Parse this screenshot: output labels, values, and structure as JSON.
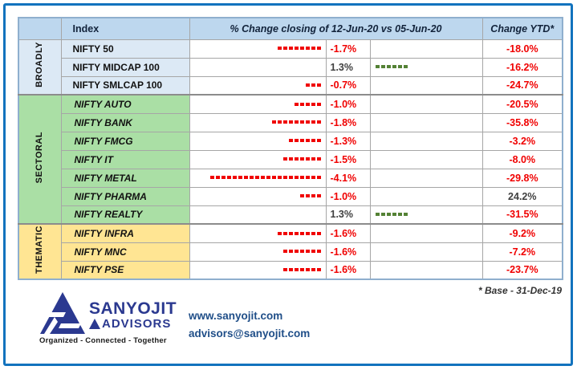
{
  "table": {
    "headers": {
      "index": "Index",
      "change": "% Change closing of 12-Jun-20 vs 05-Jun-20",
      "ytd": "Change YTD*"
    },
    "groups": [
      {
        "label": "BROADLY",
        "color": "#DCE9F5",
        "rows": [
          {
            "index": "NIFTY 50",
            "change": "-1.7%",
            "ytd": "-18.0%",
            "bars": 8,
            "positive": false
          },
          {
            "index": "NIFTY MIDCAP 100",
            "change": "1.3%",
            "ytd": "-16.2%",
            "bars": 6,
            "positive": true
          },
          {
            "index": "NIFTY SMLCAP 100",
            "change": "-0.7%",
            "ytd": "-24.7%",
            "bars": 3,
            "positive": false
          }
        ]
      },
      {
        "label": "SECTORAL",
        "color": "#AADFA5",
        "rows": [
          {
            "index": "NIFTY AUTO",
            "change": "-1.0%",
            "ytd": "-20.5%",
            "bars": 5,
            "positive": false
          },
          {
            "index": "NIFTY BANK",
            "change": "-1.8%",
            "ytd": "-35.8%",
            "bars": 9,
            "positive": false
          },
          {
            "index": "NIFTY FMCG",
            "change": "-1.3%",
            "ytd": "-3.2%",
            "bars": 6,
            "positive": false
          },
          {
            "index": "NIFTY IT",
            "change": "-1.5%",
            "ytd": "-8.0%",
            "bars": 7,
            "positive": false
          },
          {
            "index": "NIFTY METAL",
            "change": "-4.1%",
            "ytd": "-29.8%",
            "bars": 20,
            "positive": false
          },
          {
            "index": "NIFTY PHARMA",
            "change": "-1.0%",
            "ytd": "24.2%",
            "bars": 4,
            "positive": false
          },
          {
            "index": "NIFTY REALTY",
            "change": "1.3%",
            "ytd": "-31.5%",
            "bars": 6,
            "positive": true
          }
        ]
      },
      {
        "label": "THEMATIC",
        "color": "#FFE593",
        "rows": [
          {
            "index": "NIFTY INFRA",
            "change": "-1.6%",
            "ytd": "-9.2%",
            "bars": 8,
            "positive": false
          },
          {
            "index": "NIFTY MNC",
            "change": "-1.6%",
            "ytd": "-7.2%",
            "bars": 7,
            "positive": false
          },
          {
            "index": "NIFTY PSE",
            "change": "-1.6%",
            "ytd": "-23.7%",
            "bars": 7,
            "positive": false
          }
        ]
      }
    ]
  },
  "footer": {
    "base_note": "* Base - 31-Dec-19"
  },
  "logo": {
    "name": "SANYOJIT",
    "sub": "ADVISORS",
    "tagline": "Organized - Connected - Together"
  },
  "contact": {
    "website": "www.sanyojit.com",
    "email": "advisors@sanyojit.com"
  },
  "colors": {
    "negative_text": "#F00000",
    "positive_text": "#404040",
    "negative_bar": "#F00000",
    "positive_bar": "#548235",
    "header_bg": "#BDD7EE",
    "frame_border": "#1273BE",
    "brand_navy": "#2B3990"
  },
  "chart_data": {
    "type": "table",
    "title": "% Change closing of 12-Jun-20 vs 05-Jun-20",
    "columns": [
      "Index",
      "% Change closing of 12-Jun-20 vs 05-Jun-20",
      "Change YTD*"
    ],
    "note": "* Base - 31-Dec-19",
    "groups": [
      "BROADLY",
      "SECTORAL",
      "THEMATIC"
    ],
    "rows": [
      {
        "group": "BROADLY",
        "index": "NIFTY 50",
        "weekly_change_pct": -1.7,
        "ytd_change_pct": -18.0
      },
      {
        "group": "BROADLY",
        "index": "NIFTY MIDCAP 100",
        "weekly_change_pct": 1.3,
        "ytd_change_pct": -16.2
      },
      {
        "group": "BROADLY",
        "index": "NIFTY SMLCAP 100",
        "weekly_change_pct": -0.7,
        "ytd_change_pct": -24.7
      },
      {
        "group": "SECTORAL",
        "index": "NIFTY AUTO",
        "weekly_change_pct": -1.0,
        "ytd_change_pct": -20.5
      },
      {
        "group": "SECTORAL",
        "index": "NIFTY BANK",
        "weekly_change_pct": -1.8,
        "ytd_change_pct": -35.8
      },
      {
        "group": "SECTORAL",
        "index": "NIFTY FMCG",
        "weekly_change_pct": -1.3,
        "ytd_change_pct": -3.2
      },
      {
        "group": "SECTORAL",
        "index": "NIFTY IT",
        "weekly_change_pct": -1.5,
        "ytd_change_pct": -8.0
      },
      {
        "group": "SECTORAL",
        "index": "NIFTY METAL",
        "weekly_change_pct": -4.1,
        "ytd_change_pct": -29.8
      },
      {
        "group": "SECTORAL",
        "index": "NIFTY PHARMA",
        "weekly_change_pct": -1.0,
        "ytd_change_pct": 24.2
      },
      {
        "group": "SECTORAL",
        "index": "NIFTY REALTY",
        "weekly_change_pct": 1.3,
        "ytd_change_pct": -31.5
      },
      {
        "group": "THEMATIC",
        "index": "NIFTY INFRA",
        "weekly_change_pct": -1.6,
        "ytd_change_pct": -9.2
      },
      {
        "group": "THEMATIC",
        "index": "NIFTY MNC",
        "weekly_change_pct": -1.6,
        "ytd_change_pct": -7.2
      },
      {
        "group": "THEMATIC",
        "index": "NIFTY PSE",
        "weekly_change_pct": -1.6,
        "ytd_change_pct": -23.7
      }
    ]
  }
}
